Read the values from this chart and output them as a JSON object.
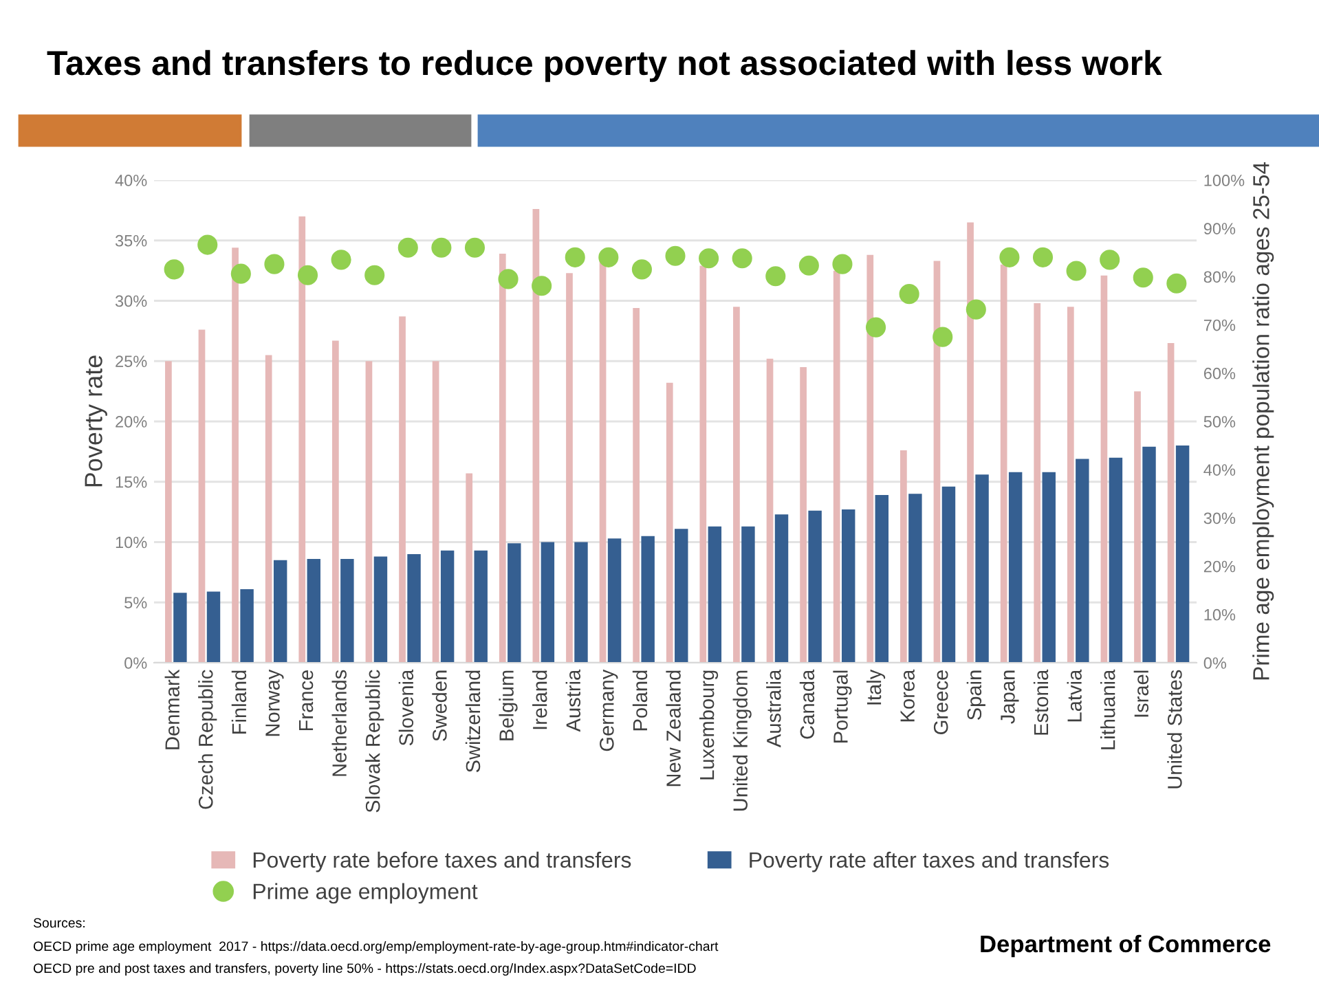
{
  "chart_data": {
    "type": "bar",
    "title": "Taxes and transfers to reduce poverty not associated with less work",
    "ylabel": "Poverty rate",
    "y2label": "Prime age employment population ratio ages 25-54",
    "categories": [
      "Denmark",
      "Czech Republic",
      "Finland",
      "Norway",
      "France",
      "Netherlands",
      "Slovak Republic",
      "Slovenia",
      "Sweden",
      "Switzerland",
      "Belgium",
      "Ireland",
      "Austria",
      "Germany",
      "Poland",
      "New Zealand",
      "Luxembourg",
      "United Kingdom",
      "Australia",
      "Canada",
      "Portugal",
      "Italy",
      "Korea",
      "Greece",
      "Spain",
      "Japan",
      "Estonia",
      "Latvia",
      "Lithuania",
      "Israel",
      "United States"
    ],
    "series": [
      {
        "name": "Poverty rate before taxes and transfers",
        "color": "#e6b8b7",
        "values": [
          25.0,
          27.6,
          34.4,
          25.5,
          37.0,
          26.7,
          25.0,
          28.7,
          25.0,
          15.7,
          33.9,
          37.6,
          32.3,
          33.5,
          29.4,
          23.2,
          32.9,
          29.5,
          25.2,
          24.5,
          32.5,
          33.8,
          17.6,
          33.3,
          36.5,
          33.0,
          29.8,
          29.5,
          32.1,
          22.5,
          26.5
        ]
      },
      {
        "name": "Poverty rate after taxes and transfers",
        "color": "#355f91",
        "values": [
          5.8,
          5.9,
          6.1,
          8.5,
          8.6,
          8.6,
          8.8,
          9.0,
          9.3,
          9.3,
          9.9,
          10.0,
          10.0,
          10.3,
          10.5,
          11.1,
          11.3,
          11.3,
          12.3,
          12.6,
          12.7,
          13.9,
          14.0,
          14.6,
          15.6,
          15.8,
          15.8,
          16.9,
          17.0,
          17.9,
          18.0
        ]
      },
      {
        "name": "Prime age employment",
        "type": "scatter",
        "axis": "y2",
        "color": "#92d050",
        "values": [
          81.5,
          86.6,
          80.6,
          82.6,
          80.3,
          83.5,
          80.3,
          86.0,
          86.0,
          86.0,
          79.5,
          78.1,
          84.0,
          84.0,
          81.5,
          84.3,
          83.8,
          83.8,
          80.1,
          82.3,
          82.6,
          69.5,
          76.4,
          67.5,
          73.2,
          84.0,
          84.0,
          81.2,
          83.5,
          79.8,
          78.6
        ]
      }
    ],
    "ylim": [
      0,
      40
    ],
    "yticks": [
      {
        "value": 0,
        "label": "0%"
      },
      {
        "value": 5,
        "label": "5%"
      },
      {
        "value": 10,
        "label": "10%"
      },
      {
        "value": 15,
        "label": "15%"
      },
      {
        "value": 20,
        "label": "20%"
      },
      {
        "value": 25,
        "label": "25%"
      },
      {
        "value": 30,
        "label": "30%"
      },
      {
        "value": 35,
        "label": "35%"
      },
      {
        "value": 40,
        "label": "40%"
      }
    ],
    "y2lim": [
      0,
      100
    ],
    "y2ticks": [
      {
        "value": 0,
        "label": "0%"
      },
      {
        "value": 10,
        "label": "10%"
      },
      {
        "value": 20,
        "label": "20%"
      },
      {
        "value": 30,
        "label": "30%"
      },
      {
        "value": 40,
        "label": "40%"
      },
      {
        "value": 50,
        "label": "50%"
      },
      {
        "value": 60,
        "label": "60%"
      },
      {
        "value": 70,
        "label": "70%"
      },
      {
        "value": 80,
        "label": "80%"
      },
      {
        "value": 90,
        "label": "90%"
      },
      {
        "value": 100,
        "label": "100%"
      }
    ],
    "grid": "y",
    "legend": "bottom",
    "marker": "circle",
    "annotations": [
      "Sources:",
      "OECD prime age employment  2017 - https://data.oecd.org/emp/employment-rate-by-age-group.htm#indicator-chart",
      "OECD pre and post taxes and transfers, poverty line 50% - https://stats.oecd.org/Index.aspx?DataSetCode=IDD",
      "Department of Commerce"
    ]
  }
}
